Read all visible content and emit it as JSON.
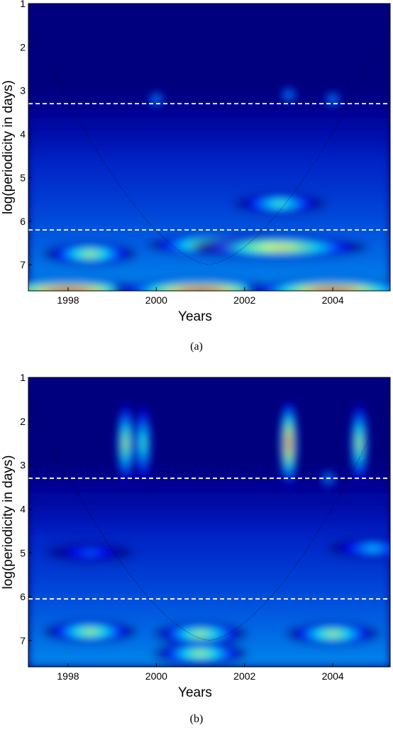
{
  "chart_data": [
    {
      "type": "heatmap",
      "caption": "(a)",
      "xlabel": "Years",
      "ylabel": "log(periodicity in days)",
      "xlim": [
        1997.1,
        2005.3
      ],
      "ylim": [
        1,
        7.6
      ],
      "x_ticks": [
        "1998",
        "2000",
        "2002",
        "2004"
      ],
      "y_ticks": [
        "1",
        "2",
        "3",
        "4",
        "5",
        "6",
        "7"
      ],
      "reference_lines_y": [
        3.3,
        6.2
      ],
      "hotspots": [
        {
          "x": 2001.8,
          "y": 6.55,
          "intensity": 1.0
        },
        {
          "x": 2002.8,
          "y": 6.6,
          "intensity": 0.75
        },
        {
          "x": 1998.5,
          "y": 6.75,
          "intensity": 0.6
        },
        {
          "x": 2002.8,
          "y": 5.6,
          "intensity": 0.5
        },
        {
          "x": 1998.0,
          "y": 7.6,
          "intensity": 0.95
        },
        {
          "x": 2001.0,
          "y": 7.6,
          "intensity": 0.95
        },
        {
          "x": 2004.0,
          "y": 7.6,
          "intensity": 0.95
        },
        {
          "x": 2000.0,
          "y": 3.2,
          "intensity": 0.35
        },
        {
          "x": 2003.0,
          "y": 3.1,
          "intensity": 0.35
        },
        {
          "x": 2004.0,
          "y": 3.2,
          "intensity": 0.35
        }
      ]
    },
    {
      "type": "heatmap",
      "caption": "(b)",
      "xlabel": "Years",
      "ylabel": "log(periodicity in days)",
      "xlim": [
        1997.1,
        2005.3
      ],
      "ylim": [
        1,
        7.6
      ],
      "x_ticks": [
        "1998",
        "2000",
        "2002",
        "2004"
      ],
      "y_ticks": [
        "1",
        "2",
        "3",
        "4",
        "5",
        "6",
        "7"
      ],
      "reference_lines_y": [
        3.3,
        6.05
      ],
      "hotspots": [
        {
          "x": 2001.0,
          "y": 6.85,
          "intensity": 0.65
        },
        {
          "x": 2004.0,
          "y": 6.85,
          "intensity": 0.65
        },
        {
          "x": 1998.5,
          "y": 6.8,
          "intensity": 0.6
        },
        {
          "x": 2001.0,
          "y": 7.3,
          "intensity": 0.6
        },
        {
          "x": 2003.0,
          "y": 2.5,
          "intensity": 0.9
        },
        {
          "x": 2004.6,
          "y": 2.5,
          "intensity": 0.6
        },
        {
          "x": 1999.3,
          "y": 2.5,
          "intensity": 0.6
        },
        {
          "x": 1999.7,
          "y": 2.5,
          "intensity": 0.55
        },
        {
          "x": 2003.9,
          "y": 3.3,
          "intensity": 0.4
        },
        {
          "x": 1998.5,
          "y": 5.0,
          "intensity": 0.3
        },
        {
          "x": 2004.9,
          "y": 4.9,
          "intensity": 0.35
        }
      ]
    }
  ],
  "colors": {
    "background": "#00007f",
    "reference_line": "#ffffff",
    "contour": "#000000",
    "text": "#000000"
  }
}
